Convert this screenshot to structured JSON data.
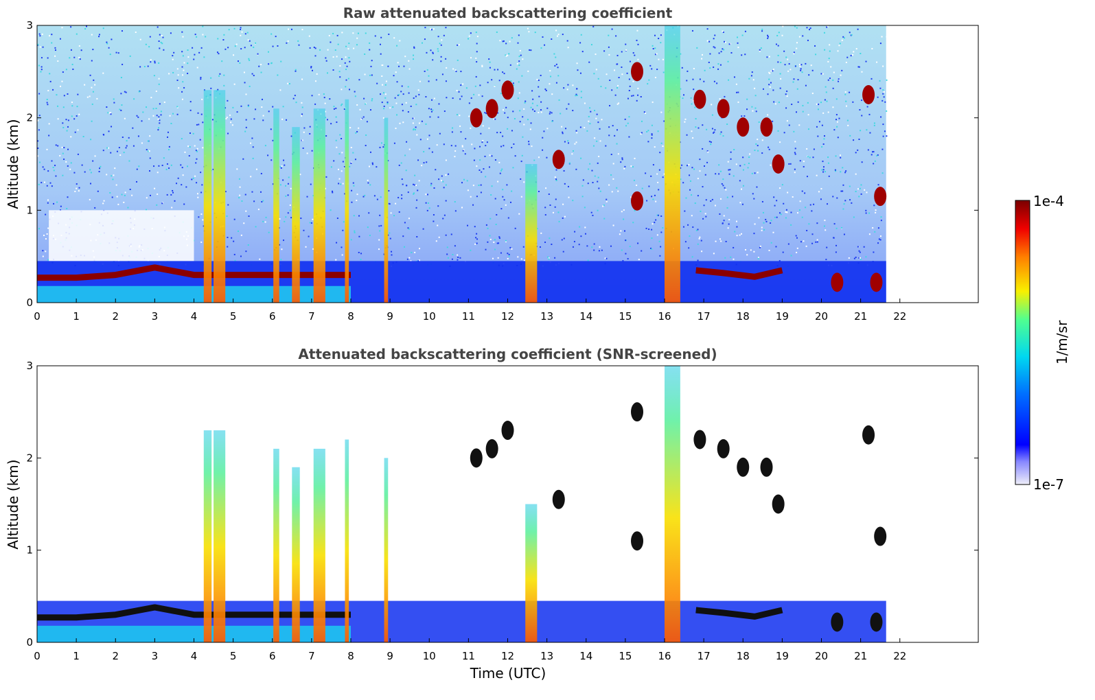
{
  "chart_data": [
    {
      "type": "heatmap",
      "title": "Raw attenuated backscattering coefficient",
      "xlabel": "",
      "ylabel": "Altitude (km)",
      "xlim": [
        0,
        24
      ],
      "ylim": [
        0,
        3
      ],
      "xticks": [
        0,
        1,
        2,
        3,
        4,
        5,
        6,
        7,
        8,
        9,
        10,
        11,
        12,
        13,
        14,
        15,
        16,
        17,
        18,
        19,
        20,
        21,
        22
      ],
      "yticks": [
        0,
        1,
        2,
        3
      ],
      "data_extent_hours": [
        0,
        21.65
      ],
      "features": {
        "boundary_layer": [
          [
            0,
            0.27
          ],
          [
            1,
            0.27
          ],
          [
            2,
            0.3
          ],
          [
            3,
            0.38
          ],
          [
            4,
            0.3
          ],
          [
            5,
            0.3
          ],
          [
            6,
            0.3
          ],
          [
            7,
            0.3
          ],
          [
            8,
            0.3
          ]
        ],
        "boundary_layer_late": [
          [
            16.8,
            0.35
          ],
          [
            17.5,
            0.32
          ],
          [
            18.3,
            0.28
          ],
          [
            19,
            0.35
          ]
        ],
        "plumes": [
          {
            "x": 4.35,
            "y_top": 2.3,
            "width": 0.2
          },
          {
            "x": 4.65,
            "y_top": 2.3,
            "width": 0.3
          },
          {
            "x": 6.1,
            "y_top": 2.1,
            "width": 0.15
          },
          {
            "x": 6.6,
            "y_top": 1.9,
            "width": 0.2
          },
          {
            "x": 7.2,
            "y_top": 2.1,
            "width": 0.3
          },
          {
            "x": 7.9,
            "y_top": 2.2,
            "width": 0.1
          },
          {
            "x": 8.9,
            "y_top": 2.0,
            "width": 0.1
          },
          {
            "x": 12.6,
            "y_top": 1.5,
            "width": 0.3
          },
          {
            "x": 16.2,
            "y_top": 3.0,
            "width": 0.4
          }
        ],
        "clouds": [
          {
            "x": 11.2,
            "y": 2.0
          },
          {
            "x": 11.6,
            "y": 2.1
          },
          {
            "x": 12.0,
            "y": 2.3
          },
          {
            "x": 13.3,
            "y": 1.55
          },
          {
            "x": 15.3,
            "y": 1.1
          },
          {
            "x": 15.3,
            "y": 2.5
          },
          {
            "x": 16.9,
            "y": 2.2
          },
          {
            "x": 17.5,
            "y": 2.1
          },
          {
            "x": 18.0,
            "y": 1.9
          },
          {
            "x": 18.6,
            "y": 1.9
          },
          {
            "x": 18.9,
            "y": 1.5
          },
          {
            "x": 21.2,
            "y": 2.25
          },
          {
            "x": 21.5,
            "y": 1.15
          },
          {
            "x": 20.4,
            "y": 0.22
          },
          {
            "x": 21.4,
            "y": 0.22
          }
        ]
      }
    },
    {
      "type": "heatmap",
      "title": "Attenuated backscattering coefficient (SNR-screened)",
      "xlabel": "Time (UTC)",
      "ylabel": "Altitude (km)",
      "xlim": [
        0,
        24
      ],
      "ylim": [
        0,
        3
      ],
      "xticks": [
        0,
        1,
        2,
        3,
        4,
        5,
        6,
        7,
        8,
        9,
        10,
        11,
        12,
        13,
        14,
        15,
        16,
        17,
        18,
        19,
        20,
        21,
        22
      ],
      "yticks": [
        0,
        1,
        2,
        3
      ],
      "data_extent_hours": [
        0,
        21.65
      ]
    }
  ],
  "colorbar": {
    "label": "1/m/sr",
    "max_label": "1e-4",
    "min_label": "1e-7",
    "colors": [
      "#e8e8f6",
      "#0000ff",
      "#00a8ff",
      "#00f0d0",
      "#ffe000",
      "#ff2000",
      "#7a0000"
    ]
  }
}
